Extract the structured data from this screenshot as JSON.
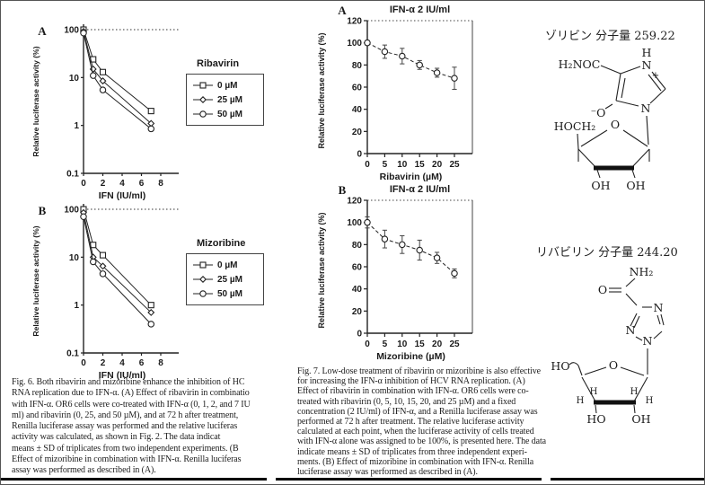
{
  "figure6": {
    "caption_lines": [
      "Fig. 6. Both ribavirin and mizoribine enhance the inhibition of HC",
      "RNA replication due to IFN-α. (A) Effect of ribavirin in combinatio",
      "with IFN-α. OR6 cells were co-treated with IFN-α (0, 1, 2, and 7 IU",
      "ml) and ribavirin (0, 25, and 50 µM), and at 72 h after treatment,",
      "Renilla luciferase assay was performed and the relative luciferas",
      "activity was calculated, as shown in Fig. 2. The data indicat",
      "means ± SD of triplicates from two independent experiments. (B",
      "Effect of mizoribine in combination with IFN-α. Renilla luciferas",
      "assay was performed as described in (A)."
    ]
  },
  "figure7": {
    "caption_lines": [
      "Fig. 7. Low-dose treatment of ribavirin or mizoribine is also effective",
      "for increasing the IFN-α inhibition of HCV RNA replication. (A)",
      "Effect of ribavirin in combination with IFN-α. OR6 cells were co-",
      "treated with ribavirin (0, 5, 10, 15, 20, and 25 µM) and a fixed",
      "concentration (2 IU/ml) of IFN-α, and a Renilla luciferase assay was",
      "performed at 72 h after treatment. The relative luciferase activity",
      "calculated at each point, when the luciferase activity of cells treated",
      "with IFN-α alone was assigned to be 100%, is presented here. The data",
      "indicate means ± SD of triplicates from three independent experi-",
      "ments. (B) Effect of mizoribine in combination with IFN-α. Renilla",
      "luciferase assay was performed as described in (A)."
    ]
  },
  "structures": {
    "mizoribine": {
      "title": "ゾリビン 分子量 259.22",
      "labels": {
        "amide": "H₂NOC",
        "nh_h": "H",
        "nh_n": "N",
        "plus": "+",
        "o_minus": "⁻O",
        "ring_n": "N",
        "hoch2": "HOCH₂",
        "ring_o": "O",
        "oh_left": "OH",
        "oh_right": "OH"
      }
    },
    "ribavirin": {
      "title": "リバビリン 分子量 244.20",
      "labels": {
        "nh2": "NH₂",
        "o": "O",
        "n_top": "N",
        "n_left": "N",
        "n_bottom": "N",
        "ho_left": "HO",
        "ring_o": "O",
        "h1": "H",
        "h2": "H",
        "h3": "H",
        "h4": "H",
        "ho_bottom": "HO",
        "oh_bottom": "OH"
      }
    }
  },
  "chart_data": [
    {
      "id": "fig6A",
      "type": "line",
      "panel": "A",
      "y_scale": "log",
      "xlabel": "IFN (IU/ml)",
      "ylabel": "Relative luciferase activity (%)",
      "legend_title": "Ribavirin",
      "xticks": [
        0,
        2,
        4,
        6,
        8
      ],
      "yticks": [
        100,
        10,
        1,
        0.1
      ],
      "xlim": [
        0,
        9.8
      ],
      "ylim": [
        0.1,
        100
      ],
      "x": [
        0,
        1,
        2,
        7
      ],
      "series": [
        {
          "name": "0 µM",
          "marker": "square",
          "values": [
            100,
            24,
            13,
            2
          ]
        },
        {
          "name": "25 µM",
          "marker": "diamond",
          "values": [
            92,
            15,
            8.5,
            1.1
          ]
        },
        {
          "name": "50 µM",
          "marker": "circle",
          "values": [
            85,
            11,
            5.5,
            0.85
          ]
        }
      ]
    },
    {
      "id": "fig6B",
      "type": "line",
      "panel": "B",
      "y_scale": "log",
      "xlabel": "IFN (IU/ml)",
      "ylabel": "Relative luciferase activity (%)",
      "legend_title": "Mizoribine",
      "xticks": [
        0,
        2,
        4,
        6,
        8
      ],
      "yticks": [
        100,
        10,
        1,
        0.1
      ],
      "xlim": [
        0,
        9.8
      ],
      "ylim": [
        0.1,
        100
      ],
      "x": [
        0,
        1,
        2,
        7
      ],
      "series": [
        {
          "name": "0 µM",
          "marker": "square",
          "values": [
            100,
            18,
            11,
            1
          ]
        },
        {
          "name": "25 µM",
          "marker": "diamond",
          "values": [
            85,
            10,
            6.5,
            0.7
          ]
        },
        {
          "name": "50 µM",
          "marker": "circle",
          "values": [
            70,
            8,
            4.5,
            0.4
          ]
        }
      ]
    },
    {
      "id": "fig7A",
      "type": "line",
      "panel": "A",
      "y_scale": "linear",
      "title": "IFN-α 2 IU/ml",
      "xlabel": "Ribavirin (µM)",
      "ylabel": "Relative luciferase activity (%)",
      "xticks": [
        0,
        5,
        10,
        15,
        20,
        25
      ],
      "yticks": [
        0,
        20,
        40,
        60,
        80,
        100,
        120
      ],
      "xlim": [
        0,
        30
      ],
      "ylim": [
        0,
        120
      ],
      "x": [
        0,
        5,
        10,
        15,
        20,
        25
      ],
      "series": [
        {
          "name": "IFN-α 2 IU/ml",
          "marker": "circle",
          "values": [
            100,
            92,
            88,
            80,
            73,
            68
          ],
          "errors": [
            2,
            6,
            7,
            4,
            4,
            10
          ]
        }
      ]
    },
    {
      "id": "fig7B",
      "type": "line",
      "panel": "B",
      "y_scale": "linear",
      "title": "IFN-α 2 IU/ml",
      "xlabel": "Mizoribine (µM)",
      "ylabel": "Relative luciferase activity (%)",
      "xticks": [
        0,
        5,
        10,
        15,
        20,
        25
      ],
      "yticks": [
        0,
        20,
        40,
        60,
        80,
        100,
        120
      ],
      "xlim": [
        0,
        30
      ],
      "ylim": [
        0,
        120
      ],
      "x": [
        0,
        5,
        10,
        15,
        20,
        25
      ],
      "series": [
        {
          "name": "IFN-α 2 IU/ml",
          "marker": "circle",
          "values": [
            100,
            85,
            80,
            75,
            68,
            54
          ],
          "errors": [
            5,
            8,
            8,
            9,
            5,
            4
          ]
        }
      ]
    }
  ]
}
